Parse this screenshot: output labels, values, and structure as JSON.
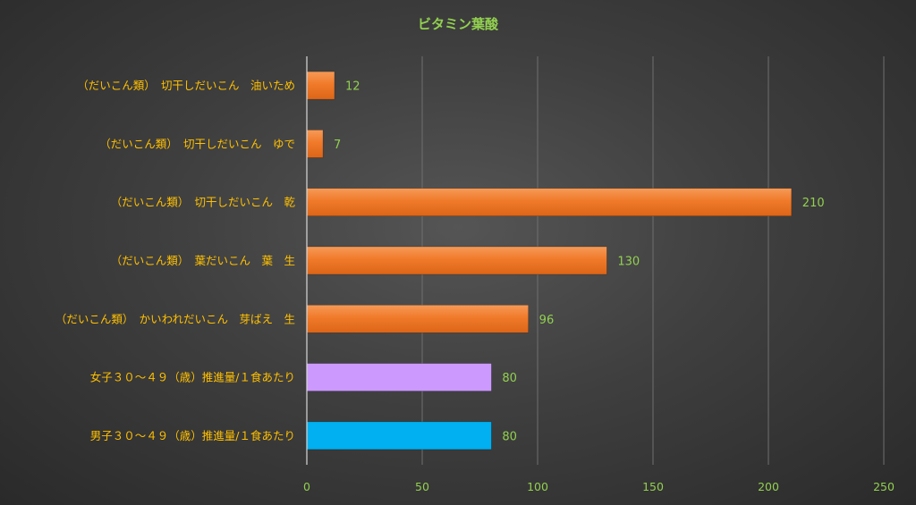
{
  "chart_data": {
    "type": "bar",
    "orientation": "horizontal",
    "title": "ビタミン葉酸",
    "categories": [
      "（だいこん類）　切干しだいこん　油いため",
      "（だいこん類）　切干しだいこん　ゆで",
      "（だいこん類）　切干しだいこん　乾",
      "（だいこん類）　葉だいこん　葉　生",
      "（だいこん類）　かいわれだいこん　芽ばえ　生",
      "女子３０～４９（歳）推進量/１食あたり",
      "男子３０～４９（歳）推進量/１食あたり"
    ],
    "values": [
      12,
      7,
      210,
      130,
      96,
      80,
      80
    ],
    "data_labels": [
      "12",
      "7",
      "210",
      "130",
      "96",
      "80",
      "80"
    ],
    "bar_colors": [
      "#f07a2a",
      "#f07a2a",
      "#f07a2a",
      "#f07a2a",
      "#f07a2a",
      "#cc99ff",
      "#00b0f0"
    ],
    "xlim": [
      0,
      250
    ],
    "x_ticks": [
      0,
      50,
      100,
      150,
      200,
      250
    ],
    "x_tick_labels": [
      "0",
      "50",
      "100",
      "150",
      "200",
      "250"
    ],
    "grid": true,
    "legend": "none",
    "colors": {
      "title": "#92d050",
      "category_label": "#ffc000",
      "tick_label": "#92d050",
      "data_label": "#92d050",
      "gridline": "#6f6f6f",
      "axis": "#d9d9d9"
    }
  }
}
